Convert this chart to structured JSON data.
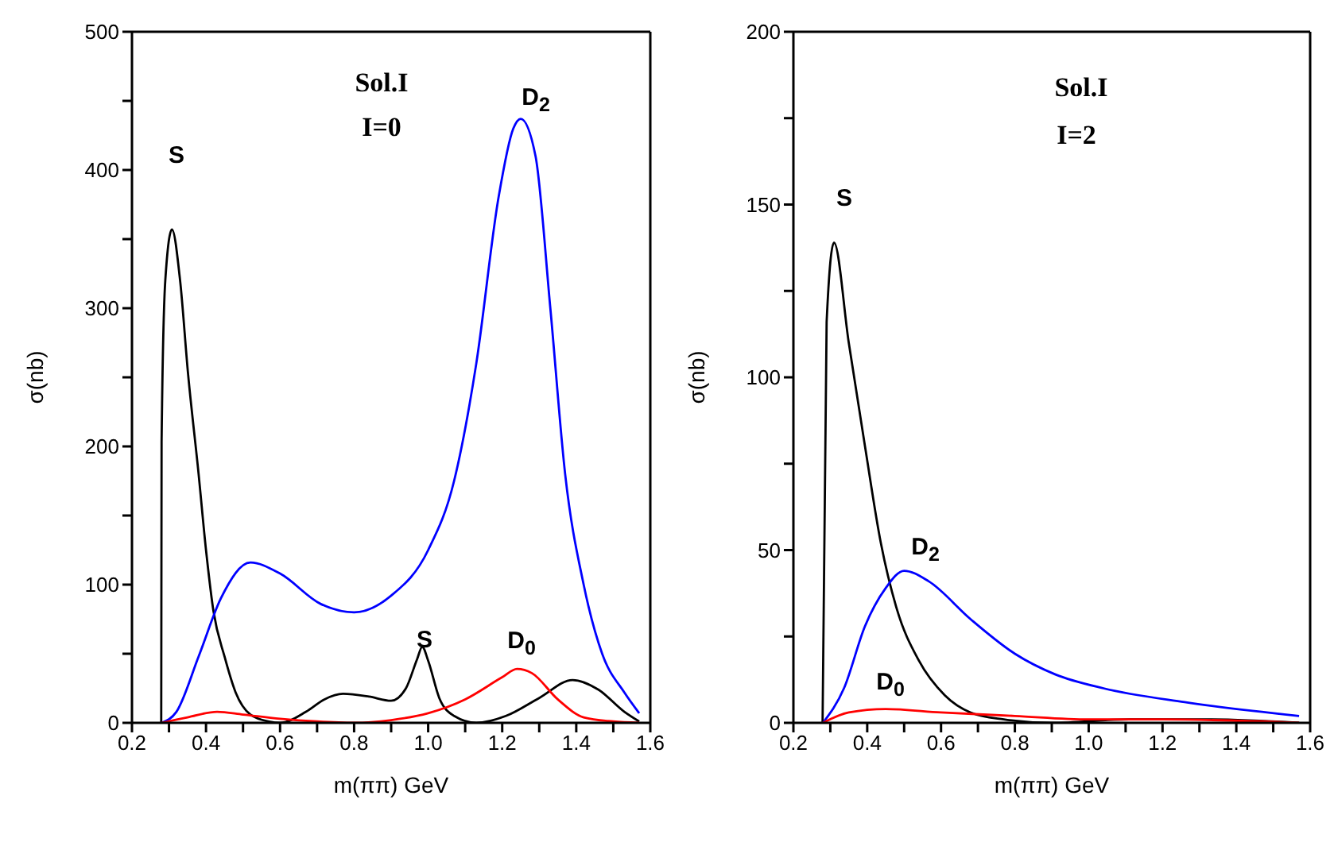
{
  "chart_data": [
    {
      "type": "line",
      "xlabel": "m(ππ) GeV",
      "ylabel": "σ(nb)",
      "xlim": [
        0.2,
        1.6
      ],
      "ylim": [
        0,
        500
      ],
      "xticks": [
        0.2,
        {
          "value": 0.3,
          "label": null
        },
        0.4,
        {
          "value": 0.5,
          "label": null
        },
        0.6,
        {
          "value": 0.7,
          "label": null
        },
        0.8,
        {
          "value": 0.9,
          "label": null
        },
        {
          "value": 1,
          "label": "1.0"
        },
        {
          "value": 1.1,
          "label": null
        },
        1.2,
        {
          "value": 1.3,
          "label": null
        },
        1.4,
        {
          "value": 1.5,
          "label": null
        },
        1.6
      ],
      "yticks": [
        0,
        {
          "value": 50,
          "label": null
        },
        100,
        {
          "value": 150,
          "label": null
        },
        200,
        {
          "value": 250,
          "label": null
        },
        300,
        {
          "value": 350,
          "label": null
        },
        400,
        {
          "value": 450,
          "label": null
        },
        500
      ],
      "marker": "none",
      "line_style": "solid",
      "annotations": [
        "Sol.I",
        "I=0",
        "S",
        "D$_{2}$",
        "S",
        "D$_{0}$"
      ],
      "series": [
        {
          "color": "#000000",
          "x": [
            0.279,
            0.28,
            0.29,
            0.308,
            0.33,
            0.351,
            0.38,
            0.4,
            0.42,
            0.45,
            0.48,
            0.52,
            0.57,
            0.6,
            0.67,
            0.72,
            0.77,
            0.84,
            0.9,
            0.94,
            0.97,
            0.984,
            1.0,
            1.03,
            1.07,
            1.13,
            1.21,
            1.3,
            1.39,
            1.46,
            1.53,
            1.57
          ],
          "values": [
            0,
            203,
            320,
            357,
            320,
            254,
            180,
            125,
            81,
            48,
            22,
            6,
            1,
            0,
            8,
            17,
            21,
            19,
            16,
            25,
            46,
            55,
            45,
            18,
            5,
            0,
            5,
            18,
            31,
            24,
            8,
            1
          ]
        },
        {
          "color": "#0000ff",
          "x": [
            0.28,
            0.32,
            0.38,
            0.44,
            0.52,
            0.6,
            0.71,
            0.8,
            0.9,
            1.0,
            1.07,
            1.13,
            1.19,
            1.23,
            1.25,
            1.29,
            1.33,
            1.37,
            1.42,
            1.47,
            1.53,
            1.57
          ],
          "values": [
            0,
            8,
            48,
            90,
            116,
            108,
            86,
            80,
            92,
            125,
            175,
            260,
            380,
            430,
            437,
            410,
            300,
            180,
            100,
            50,
            22,
            7
          ]
        },
        {
          "color": "#ff0000",
          "x": [
            0.28,
            0.35,
            0.43,
            0.5,
            0.6,
            0.7,
            0.8,
            0.9,
            1.0,
            1.1,
            1.2,
            1.24,
            1.28,
            1.35,
            1.42,
            1.5,
            1.57
          ],
          "values": [
            0,
            4,
            8,
            6,
            3,
            1,
            0,
            2,
            7,
            17,
            33,
            39,
            36,
            17,
            4,
            1,
            0
          ]
        }
      ]
    },
    {
      "type": "line",
      "xlabel": "m(ππ) GeV",
      "ylabel": "σ(nb)",
      "xlim": [
        0.2,
        1.6
      ],
      "ylim": [
        0,
        200
      ],
      "xticks": [
        0.2,
        {
          "value": 0.3,
          "label": null
        },
        0.4,
        {
          "value": 0.5,
          "label": null
        },
        0.6,
        {
          "value": 0.7,
          "label": null
        },
        0.8,
        {
          "value": 0.9,
          "label": null
        },
        {
          "value": 1,
          "label": "1.0"
        },
        {
          "value": 1.1,
          "label": null
        },
        1.2,
        {
          "value": 1.3,
          "label": null
        },
        1.4,
        {
          "value": 1.5,
          "label": null
        },
        1.6
      ],
      "yticks": [
        0,
        {
          "value": 25,
          "label": null
        },
        50,
        {
          "value": 75,
          "label": null
        },
        100,
        {
          "value": 125,
          "label": null
        },
        150,
        {
          "value": 175,
          "label": null
        },
        200
      ],
      "marker": "none",
      "line_style": "solid",
      "annotations": [
        "Sol.I",
        "I=2",
        "S",
        "D$_{2}$",
        "D$_{0}$"
      ],
      "series": [
        {
          "color": "#000000",
          "x": [
            0.279,
            0.29,
            0.31,
            0.35,
            0.394,
            0.437,
            0.48,
            0.54,
            0.61,
            0.68,
            0.77,
            0.9,
            1.11,
            1.33,
            1.57
          ],
          "values": [
            0,
            116,
            139,
            110,
            80,
            52,
            33,
            18,
            8,
            3,
            1,
            0,
            1,
            1,
            0
          ]
        },
        {
          "color": "#0000ff",
          "x": [
            0.28,
            0.337,
            0.394,
            0.45,
            0.5,
            0.566,
            0.68,
            0.8,
            0.91,
            1.04,
            1.26,
            1.57
          ],
          "values": [
            0,
            10,
            28,
            39,
            44,
            41,
            30,
            20,
            14,
            10,
            6,
            2
          ]
        },
        {
          "color": "#ff0000",
          "x": [
            0.28,
            0.35,
            0.45,
            0.6,
            0.8,
            1.0,
            1.2,
            1.57
          ],
          "values": [
            0,
            3,
            4,
            3,
            2,
            1,
            1,
            0
          ]
        }
      ]
    }
  ]
}
